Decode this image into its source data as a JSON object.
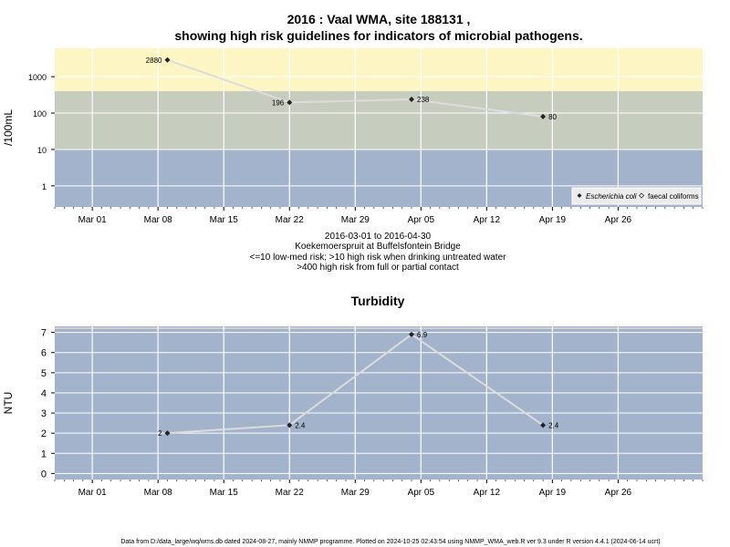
{
  "title_line1": "2016 : Vaal WMA, site 188131 ,",
  "title_line2": "showing high risk guidelines for indicators of microbial pathogens.",
  "subtitle_lines": [
    "2016-03-01 to 2016-04-30",
    "Koekemoerspruit at Buffelsfontein Bridge",
    "<=10 low-med risk; >10 high risk when drinking untreated water",
    ">400 high risk from full or partial contact"
  ],
  "footer": "Data from D:/data_large/wq/wms.db dated 2024-08-27, mainly NMMP programme. Plotted on 2024-10-25 02:43:54 using NMMP_WMA_web.R ver 9.3 under R version 4.4.1 (2024-06-14 ucrt)",
  "colors": {
    "band_low": "#a3b3cb",
    "band_mid": "#c6ccbe",
    "band_high": "#fdf5c4",
    "line": "#dcdcdc",
    "grid": "#ffffff",
    "point": "#222222"
  },
  "chart_data": [
    {
      "type": "line",
      "title": "",
      "ylabel": "/100mL",
      "yscale": "log",
      "yticks": [
        1,
        10,
        100,
        1000
      ],
      "ytick_labels": [
        "1",
        "10",
        "100",
        "1000"
      ],
      "xlim": [
        "2016-02-26",
        "2016-05-05"
      ],
      "xticks": [
        "2016-03-01",
        "2016-03-08",
        "2016-03-15",
        "2016-03-22",
        "2016-03-29",
        "2016-04-05",
        "2016-04-12",
        "2016-04-19",
        "2016-04-26"
      ],
      "xtick_labels": [
        "Mar 01",
        "Mar 08",
        "Mar 15",
        "Mar 22",
        "Mar 29",
        "Apr 05",
        "Apr 12",
        "Apr 19",
        "Apr 26"
      ],
      "bands": [
        {
          "from": 0.1,
          "to": 10,
          "label": "low-med risk"
        },
        {
          "from": 10,
          "to": 400,
          "label": "high risk when drinking untreated water"
        },
        {
          "from": 400,
          "to": 10000,
          "label": "high risk from full or partial contact"
        }
      ],
      "series": [
        {
          "name": "Escherichia coli",
          "x": [
            "2016-03-09",
            "2016-03-22",
            "2016-04-04",
            "2016-04-18"
          ],
          "y": [
            2880,
            196,
            238,
            80
          ],
          "labels": [
            "2880",
            "196",
            "238",
            "80"
          ]
        }
      ],
      "legend": {
        "position": "bottom-right",
        "entries": [
          "Escherichia coli",
          "faecal coliforms"
        ]
      },
      "grid": true
    },
    {
      "type": "line",
      "title": "Turbidity",
      "ylabel": "NTU",
      "ylim": [
        0,
        7
      ],
      "yticks": [
        0,
        1,
        2,
        3,
        4,
        5,
        6,
        7
      ],
      "xlim": [
        "2016-02-26",
        "2016-05-05"
      ],
      "xticks": [
        "2016-03-01",
        "2016-03-08",
        "2016-03-15",
        "2016-03-22",
        "2016-03-29",
        "2016-04-05",
        "2016-04-12",
        "2016-04-19",
        "2016-04-26"
      ],
      "xtick_labels": [
        "Mar 01",
        "Mar 08",
        "Mar 15",
        "Mar 22",
        "Mar 29",
        "Apr 05",
        "Apr 12",
        "Apr 19",
        "Apr 26"
      ],
      "series": [
        {
          "x": [
            "2016-03-09",
            "2016-03-22",
            "2016-04-04",
            "2016-04-18"
          ],
          "y": [
            2,
            2.4,
            6.9,
            2.4
          ],
          "labels": [
            "2",
            "2.4",
            "6.9",
            "2.4"
          ]
        }
      ],
      "grid": true
    }
  ]
}
